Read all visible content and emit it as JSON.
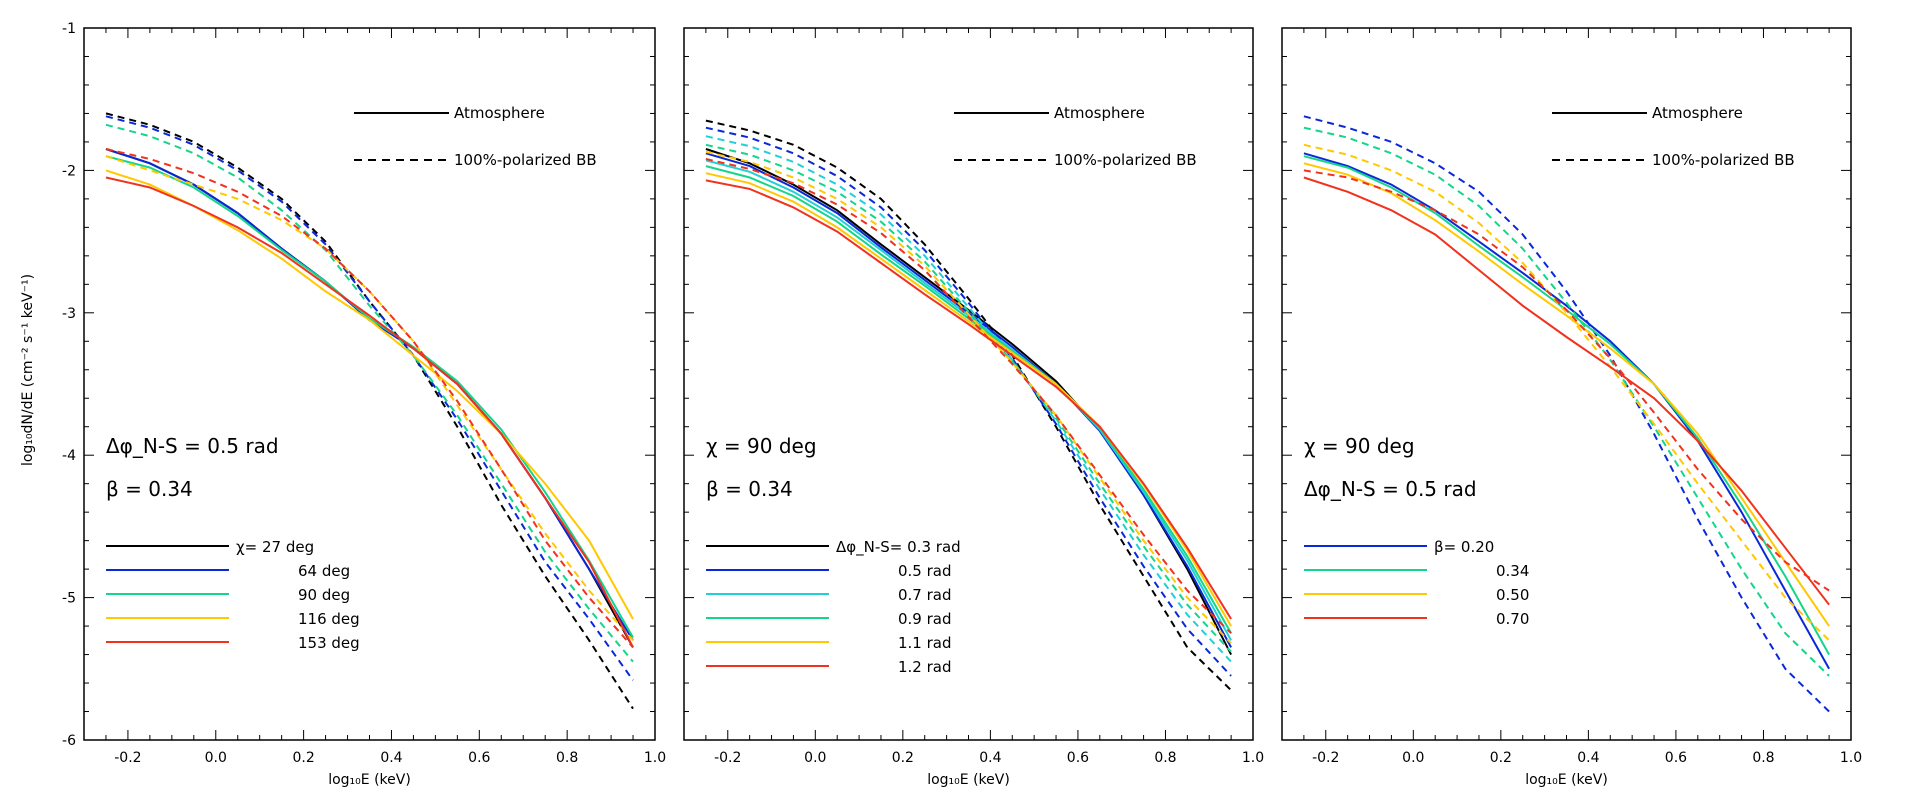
{
  "figure": {
    "shared_ylabel": "log₁₀dN/dE (cm⁻² s⁻¹ keV⁻¹)",
    "style_legend": [
      {
        "label": "Atmosphere",
        "dash": "solid"
      },
      {
        "label": "100%-polarized BB",
        "dash": "dashed"
      }
    ]
  },
  "chart_data": [
    {
      "type": "line",
      "title": "",
      "xlabel": "log₁₀E (keV)",
      "ylabel": "log₁₀dN/dE (cm⁻² s⁻¹ keV⁻¹)",
      "xlim": [
        -0.3,
        1.0
      ],
      "ylim": [
        -6,
        -1
      ],
      "xticks": [
        "-0.2",
        "0.0",
        "0.2",
        "0.4",
        "0.6",
        "0.8",
        "1.0"
      ],
      "yticks": [
        "-1",
        "-2",
        "-3",
        "-4",
        "-5",
        "-6"
      ],
      "annotations": [
        "Δφ_N-S =  0.5 rad",
        "β =  0.34"
      ],
      "legend_prefix": "χ=",
      "x": [
        -0.25,
        -0.15,
        -0.05,
        0.05,
        0.15,
        0.25,
        0.35,
        0.45,
        0.55,
        0.65,
        0.75,
        0.85,
        0.95
      ],
      "series": [
        {
          "name": "27 deg",
          "color": "#000000",
          "solid": [
            -1.85,
            -1.95,
            -2.1,
            -2.3,
            -2.55,
            -2.78,
            -3.05,
            -3.25,
            -3.5,
            -3.85,
            -4.3,
            -4.8,
            -5.35
          ],
          "dashed": [
            -1.6,
            -1.68,
            -1.8,
            -1.98,
            -2.2,
            -2.5,
            -2.92,
            -3.3,
            -3.8,
            -4.35,
            -4.85,
            -5.3,
            -5.78
          ]
        },
        {
          "name": "64 deg",
          "color": "#0a28d8",
          "solid": [
            -1.85,
            -1.95,
            -2.1,
            -2.3,
            -2.55,
            -2.78,
            -3.05,
            -3.25,
            -3.5,
            -3.85,
            -4.3,
            -4.8,
            -5.3
          ],
          "dashed": [
            -1.62,
            -1.7,
            -1.82,
            -2.0,
            -2.22,
            -2.52,
            -2.92,
            -3.3,
            -3.75,
            -4.25,
            -4.75,
            -5.15,
            -5.58
          ]
        },
        {
          "name": "90 deg",
          "color": "#13d68a",
          "solid": [
            -1.9,
            -1.98,
            -2.12,
            -2.32,
            -2.56,
            -2.78,
            -3.04,
            -3.24,
            -3.48,
            -3.82,
            -4.26,
            -4.74,
            -5.28
          ],
          "dashed": [
            -1.68,
            -1.76,
            -1.88,
            -2.05,
            -2.28,
            -2.56,
            -2.95,
            -3.3,
            -3.72,
            -4.2,
            -4.68,
            -5.08,
            -5.45
          ]
        },
        {
          "name": "116 deg",
          "color": "#ffc800",
          "solid": [
            -2.0,
            -2.1,
            -2.25,
            -2.42,
            -2.62,
            -2.85,
            -3.05,
            -3.3,
            -3.55,
            -3.85,
            -4.2,
            -4.6,
            -5.15
          ],
          "dashed": [
            -1.9,
            -2.0,
            -2.1,
            -2.2,
            -2.35,
            -2.55,
            -2.85,
            -3.2,
            -3.65,
            -4.1,
            -4.55,
            -4.95,
            -5.3
          ]
        },
        {
          "name": "153 deg",
          "color": "#f0321e",
          "solid": [
            -2.05,
            -2.12,
            -2.25,
            -2.4,
            -2.58,
            -2.8,
            -3.02,
            -3.25,
            -3.5,
            -3.85,
            -4.3,
            -4.75,
            -5.35
          ],
          "dashed": [
            -1.85,
            -1.92,
            -2.02,
            -2.15,
            -2.32,
            -2.55,
            -2.85,
            -3.2,
            -3.62,
            -4.1,
            -4.6,
            -5.0,
            -5.35
          ]
        }
      ]
    },
    {
      "type": "line",
      "title": "",
      "xlabel": "log₁₀E (keV)",
      "ylabel": "",
      "xlim": [
        -0.3,
        1.0
      ],
      "ylim": [
        -6,
        -1
      ],
      "xticks": [
        "-0.2",
        "0.0",
        "0.2",
        "0.4",
        "0.6",
        "0.8",
        "1.0"
      ],
      "yticks": [],
      "annotations": [
        "χ =    90 deg",
        "β =  0.34"
      ],
      "legend_prefix": "Δφ_N-S=",
      "x": [
        -0.25,
        -0.15,
        -0.05,
        0.05,
        0.15,
        0.25,
        0.35,
        0.45,
        0.55,
        0.65,
        0.75,
        0.85,
        0.95
      ],
      "series": [
        {
          "name": "0.3 rad",
          "color": "#000000",
          "solid": [
            -1.85,
            -1.95,
            -2.1,
            -2.28,
            -2.52,
            -2.75,
            -2.98,
            -3.22,
            -3.48,
            -3.82,
            -4.28,
            -4.8,
            -5.4
          ],
          "dashed": [
            -1.65,
            -1.72,
            -1.82,
            -1.98,
            -2.2,
            -2.52,
            -2.9,
            -3.3,
            -3.8,
            -4.35,
            -4.85,
            -5.35,
            -5.65
          ]
        },
        {
          "name": "0.5 rad",
          "color": "#0a28d8",
          "solid": [
            -1.88,
            -1.97,
            -2.12,
            -2.3,
            -2.54,
            -2.77,
            -3.0,
            -3.24,
            -3.5,
            -3.83,
            -4.28,
            -4.78,
            -5.35
          ],
          "dashed": [
            -1.7,
            -1.77,
            -1.88,
            -2.04,
            -2.26,
            -2.56,
            -2.93,
            -3.32,
            -3.78,
            -4.3,
            -4.78,
            -5.22,
            -5.55
          ]
        },
        {
          "name": "0.7 rad",
          "color": "#20d0d8",
          "solid": [
            -1.93,
            -2.01,
            -2.15,
            -2.33,
            -2.56,
            -2.79,
            -3.02,
            -3.26,
            -3.5,
            -3.82,
            -4.26,
            -4.74,
            -5.3
          ],
          "dashed": [
            -1.76,
            -1.83,
            -1.94,
            -2.1,
            -2.31,
            -2.6,
            -2.96,
            -3.33,
            -3.76,
            -4.24,
            -4.7,
            -5.12,
            -5.45
          ]
        },
        {
          "name": "0.9 rad",
          "color": "#13d68a",
          "solid": [
            -1.97,
            -2.05,
            -2.18,
            -2.36,
            -2.59,
            -2.81,
            -3.04,
            -3.27,
            -3.5,
            -3.81,
            -4.24,
            -4.71,
            -5.25
          ],
          "dashed": [
            -1.82,
            -1.89,
            -2.0,
            -2.15,
            -2.36,
            -2.64,
            -2.99,
            -3.34,
            -3.74,
            -4.2,
            -4.64,
            -5.05,
            -5.38
          ]
        },
        {
          "name": "1.1 rad",
          "color": "#ffc800",
          "solid": [
            -2.02,
            -2.09,
            -2.22,
            -2.4,
            -2.62,
            -2.84,
            -3.06,
            -3.28,
            -3.5,
            -3.8,
            -4.21,
            -4.67,
            -5.2
          ],
          "dashed": [
            -1.87,
            -1.94,
            -2.05,
            -2.2,
            -2.4,
            -2.67,
            -3.01,
            -3.35,
            -3.72,
            -4.16,
            -4.6,
            -5.0,
            -5.32
          ]
        },
        {
          "name": "1.2 rad",
          "color": "#f0321e",
          "solid": [
            -2.07,
            -2.13,
            -2.26,
            -2.43,
            -2.65,
            -2.87,
            -3.08,
            -3.3,
            -3.52,
            -3.8,
            -4.2,
            -4.65,
            -5.15
          ],
          "dashed": [
            -1.92,
            -1.99,
            -2.09,
            -2.24,
            -2.44,
            -2.7,
            -3.03,
            -3.36,
            -3.72,
            -4.14,
            -4.56,
            -4.95,
            -5.25
          ]
        }
      ]
    },
    {
      "type": "line",
      "title": "",
      "xlabel": "log₁₀E (keV)",
      "ylabel": "",
      "xlim": [
        -0.3,
        1.0
      ],
      "ylim": [
        -6,
        -1
      ],
      "xticks": [
        "-0.2",
        "0.0",
        "0.2",
        "0.4",
        "0.6",
        "0.8",
        "1.0"
      ],
      "yticks": [],
      "annotations": [
        "χ =    90 deg",
        "Δφ_N-S =  0.5 rad"
      ],
      "legend_prefix": "β=",
      "x": [
        -0.25,
        -0.15,
        -0.05,
        0.05,
        0.15,
        0.25,
        0.35,
        0.45,
        0.55,
        0.65,
        0.75,
        0.85,
        0.95
      ],
      "series": [
        {
          "name": "0.20",
          "color": "#0a28d8",
          "solid": [
            -1.88,
            -1.97,
            -2.1,
            -2.28,
            -2.5,
            -2.72,
            -2.95,
            -3.2,
            -3.5,
            -3.9,
            -4.4,
            -4.95,
            -5.5
          ],
          "dashed": [
            -1.62,
            -1.7,
            -1.8,
            -1.95,
            -2.15,
            -2.45,
            -2.85,
            -3.3,
            -3.85,
            -4.45,
            -5.0,
            -5.5,
            -5.8
          ]
        },
        {
          "name": "0.34",
          "color": "#13d68a",
          "solid": [
            -1.9,
            -1.98,
            -2.12,
            -2.3,
            -2.53,
            -2.75,
            -2.98,
            -3.22,
            -3.5,
            -3.88,
            -4.35,
            -4.85,
            -5.4
          ],
          "dashed": [
            -1.7,
            -1.77,
            -1.88,
            -2.03,
            -2.25,
            -2.55,
            -2.93,
            -3.33,
            -3.8,
            -4.3,
            -4.8,
            -5.25,
            -5.55
          ]
        },
        {
          "name": "0.50",
          "color": "#ffc800",
          "solid": [
            -1.95,
            -2.03,
            -2.16,
            -2.35,
            -2.57,
            -2.8,
            -3.02,
            -3.25,
            -3.5,
            -3.85,
            -4.3,
            -4.75,
            -5.2
          ],
          "dashed": [
            -1.82,
            -1.89,
            -2.0,
            -2.15,
            -2.37,
            -2.65,
            -3.0,
            -3.38,
            -3.78,
            -4.2,
            -4.6,
            -5.0,
            -5.3
          ]
        },
        {
          "name": "0.70",
          "color": "#f0321e",
          "solid": [
            -2.05,
            -2.15,
            -2.28,
            -2.45,
            -2.7,
            -2.95,
            -3.17,
            -3.38,
            -3.6,
            -3.9,
            -4.25,
            -4.65,
            -5.05
          ],
          "dashed": [
            -2.0,
            -2.05,
            -2.15,
            -2.28,
            -2.45,
            -2.68,
            -2.98,
            -3.32,
            -3.7,
            -4.1,
            -4.45,
            -4.75,
            -4.95
          ]
        }
      ]
    }
  ]
}
